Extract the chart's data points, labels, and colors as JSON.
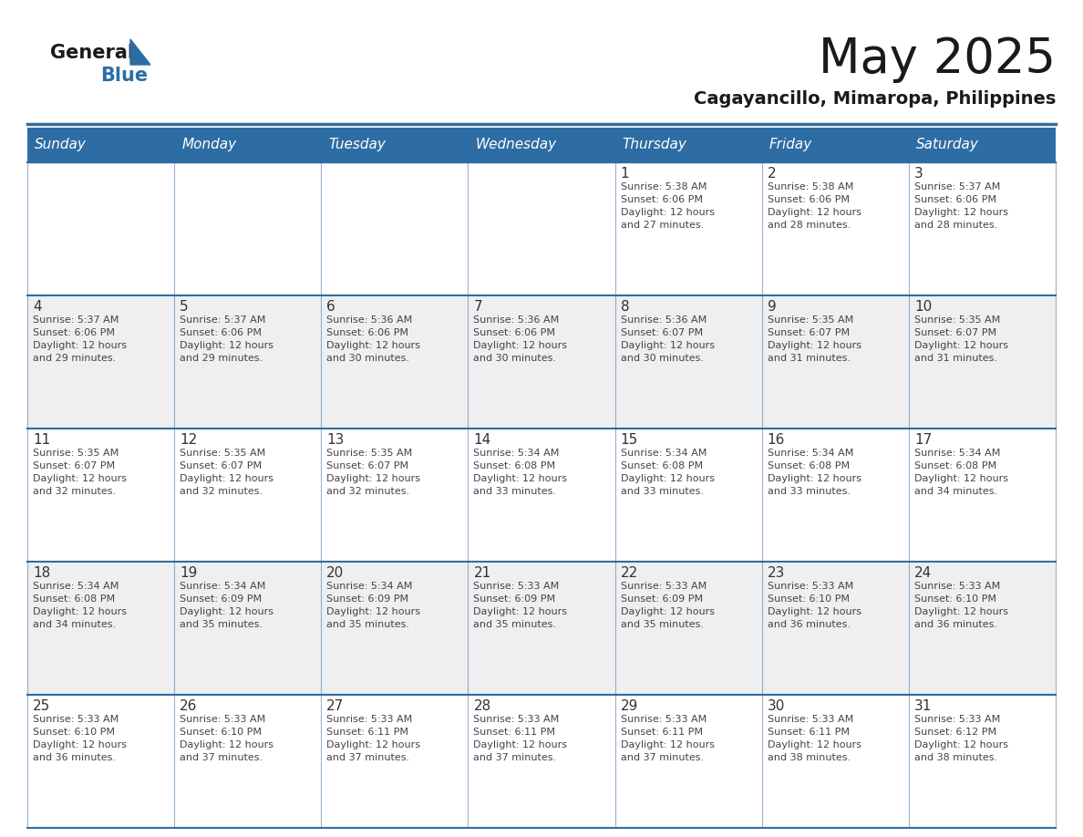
{
  "title": "May 2025",
  "subtitle": "Cagayancillo, Mimaropa, Philippines",
  "days_of_week": [
    "Sunday",
    "Monday",
    "Tuesday",
    "Wednesday",
    "Thursday",
    "Friday",
    "Saturday"
  ],
  "header_bg": "#2E6DA4",
  "header_text": "#FFFFFF",
  "cell_bg_odd": "#EFEFEF",
  "cell_bg_even": "#FFFFFF",
  "cell_text": "#444444",
  "day_number_color": "#333333",
  "grid_line_color": "#2E6DA4",
  "title_color": "#1a1a1a",
  "subtitle_color": "#1a1a1a",
  "logo_general_color": "#1a1a1a",
  "logo_blue_color": "#2E6DA4",
  "weeks": [
    {
      "days": [
        {
          "day": null,
          "sunrise": null,
          "sunset": null,
          "daylight_hours": null,
          "daylight_minutes": null
        },
        {
          "day": null,
          "sunrise": null,
          "sunset": null,
          "daylight_hours": null,
          "daylight_minutes": null
        },
        {
          "day": null,
          "sunrise": null,
          "sunset": null,
          "daylight_hours": null,
          "daylight_minutes": null
        },
        {
          "day": null,
          "sunrise": null,
          "sunset": null,
          "daylight_hours": null,
          "daylight_minutes": null
        },
        {
          "day": 1,
          "sunrise": "5:38 AM",
          "sunset": "6:06 PM",
          "daylight_hours": 12,
          "daylight_minutes": 27
        },
        {
          "day": 2,
          "sunrise": "5:38 AM",
          "sunset": "6:06 PM",
          "daylight_hours": 12,
          "daylight_minutes": 28
        },
        {
          "day": 3,
          "sunrise": "5:37 AM",
          "sunset": "6:06 PM",
          "daylight_hours": 12,
          "daylight_minutes": 28
        }
      ]
    },
    {
      "days": [
        {
          "day": 4,
          "sunrise": "5:37 AM",
          "sunset": "6:06 PM",
          "daylight_hours": 12,
          "daylight_minutes": 29
        },
        {
          "day": 5,
          "sunrise": "5:37 AM",
          "sunset": "6:06 PM",
          "daylight_hours": 12,
          "daylight_minutes": 29
        },
        {
          "day": 6,
          "sunrise": "5:36 AM",
          "sunset": "6:06 PM",
          "daylight_hours": 12,
          "daylight_minutes": 30
        },
        {
          "day": 7,
          "sunrise": "5:36 AM",
          "sunset": "6:06 PM",
          "daylight_hours": 12,
          "daylight_minutes": 30
        },
        {
          "day": 8,
          "sunrise": "5:36 AM",
          "sunset": "6:07 PM",
          "daylight_hours": 12,
          "daylight_minutes": 30
        },
        {
          "day": 9,
          "sunrise": "5:35 AM",
          "sunset": "6:07 PM",
          "daylight_hours": 12,
          "daylight_minutes": 31
        },
        {
          "day": 10,
          "sunrise": "5:35 AM",
          "sunset": "6:07 PM",
          "daylight_hours": 12,
          "daylight_minutes": 31
        }
      ]
    },
    {
      "days": [
        {
          "day": 11,
          "sunrise": "5:35 AM",
          "sunset": "6:07 PM",
          "daylight_hours": 12,
          "daylight_minutes": 32
        },
        {
          "day": 12,
          "sunrise": "5:35 AM",
          "sunset": "6:07 PM",
          "daylight_hours": 12,
          "daylight_minutes": 32
        },
        {
          "day": 13,
          "sunrise": "5:35 AM",
          "sunset": "6:07 PM",
          "daylight_hours": 12,
          "daylight_minutes": 32
        },
        {
          "day": 14,
          "sunrise": "5:34 AM",
          "sunset": "6:08 PM",
          "daylight_hours": 12,
          "daylight_minutes": 33
        },
        {
          "day": 15,
          "sunrise": "5:34 AM",
          "sunset": "6:08 PM",
          "daylight_hours": 12,
          "daylight_minutes": 33
        },
        {
          "day": 16,
          "sunrise": "5:34 AM",
          "sunset": "6:08 PM",
          "daylight_hours": 12,
          "daylight_minutes": 33
        },
        {
          "day": 17,
          "sunrise": "5:34 AM",
          "sunset": "6:08 PM",
          "daylight_hours": 12,
          "daylight_minutes": 34
        }
      ]
    },
    {
      "days": [
        {
          "day": 18,
          "sunrise": "5:34 AM",
          "sunset": "6:08 PM",
          "daylight_hours": 12,
          "daylight_minutes": 34
        },
        {
          "day": 19,
          "sunrise": "5:34 AM",
          "sunset": "6:09 PM",
          "daylight_hours": 12,
          "daylight_minutes": 35
        },
        {
          "day": 20,
          "sunrise": "5:34 AM",
          "sunset": "6:09 PM",
          "daylight_hours": 12,
          "daylight_minutes": 35
        },
        {
          "day": 21,
          "sunrise": "5:33 AM",
          "sunset": "6:09 PM",
          "daylight_hours": 12,
          "daylight_minutes": 35
        },
        {
          "day": 22,
          "sunrise": "5:33 AM",
          "sunset": "6:09 PM",
          "daylight_hours": 12,
          "daylight_minutes": 35
        },
        {
          "day": 23,
          "sunrise": "5:33 AM",
          "sunset": "6:10 PM",
          "daylight_hours": 12,
          "daylight_minutes": 36
        },
        {
          "day": 24,
          "sunrise": "5:33 AM",
          "sunset": "6:10 PM",
          "daylight_hours": 12,
          "daylight_minutes": 36
        }
      ]
    },
    {
      "days": [
        {
          "day": 25,
          "sunrise": "5:33 AM",
          "sunset": "6:10 PM",
          "daylight_hours": 12,
          "daylight_minutes": 36
        },
        {
          "day": 26,
          "sunrise": "5:33 AM",
          "sunset": "6:10 PM",
          "daylight_hours": 12,
          "daylight_minutes": 37
        },
        {
          "day": 27,
          "sunrise": "5:33 AM",
          "sunset": "6:11 PM",
          "daylight_hours": 12,
          "daylight_minutes": 37
        },
        {
          "day": 28,
          "sunrise": "5:33 AM",
          "sunset": "6:11 PM",
          "daylight_hours": 12,
          "daylight_minutes": 37
        },
        {
          "day": 29,
          "sunrise": "5:33 AM",
          "sunset": "6:11 PM",
          "daylight_hours": 12,
          "daylight_minutes": 37
        },
        {
          "day": 30,
          "sunrise": "5:33 AM",
          "sunset": "6:11 PM",
          "daylight_hours": 12,
          "daylight_minutes": 38
        },
        {
          "day": 31,
          "sunrise": "5:33 AM",
          "sunset": "6:12 PM",
          "daylight_hours": 12,
          "daylight_minutes": 38
        }
      ]
    }
  ]
}
